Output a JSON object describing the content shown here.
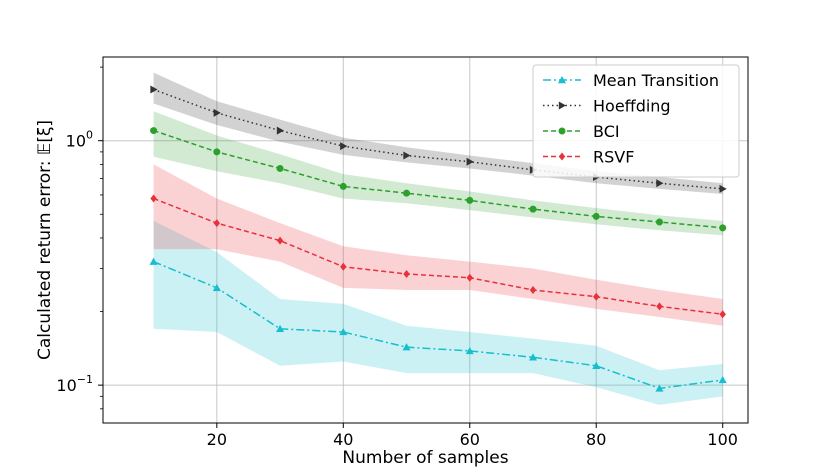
{
  "chart_data": {
    "type": "line",
    "title": "",
    "xlabel": "Number of samples",
    "ylabel": "Calculated return error: 𝔼[ξ]",
    "yscale": "log",
    "xlim": [
      2,
      104
    ],
    "ylim": [
      0.07,
      2.2
    ],
    "xticks": [
      {
        "value": 20,
        "label": "20"
      },
      {
        "value": 40,
        "label": "40"
      },
      {
        "value": 60,
        "label": "60"
      },
      {
        "value": 80,
        "label": "80"
      },
      {
        "value": 100,
        "label": "100"
      }
    ],
    "yticks": [
      {
        "value": 0.1,
        "base": "10",
        "exp": "−1"
      },
      {
        "value": 1.0,
        "base": "10",
        "exp": "0"
      }
    ],
    "grid": true,
    "legend_position": "top-right",
    "x": [
      10,
      20,
      30,
      40,
      50,
      60,
      70,
      80,
      90,
      100
    ],
    "series": [
      {
        "name": "Mean Transition",
        "color": "#17becf",
        "marker": "triangle-up",
        "linestyle": "dashdot",
        "values": [
          0.32,
          0.25,
          0.17,
          0.165,
          0.143,
          0.138,
          0.13,
          0.12,
          0.097,
          0.105
        ],
        "lower": [
          0.17,
          0.165,
          0.12,
          0.125,
          0.112,
          0.112,
          0.112,
          0.098,
          0.083,
          0.09
        ],
        "upper": [
          0.47,
          0.35,
          0.225,
          0.215,
          0.175,
          0.165,
          0.155,
          0.145,
          0.115,
          0.122
        ]
      },
      {
        "name": "Hoeffding",
        "color": "#333333",
        "marker": "triangle-right",
        "linestyle": "dotted",
        "values": [
          1.62,
          1.3,
          1.1,
          0.95,
          0.87,
          0.82,
          0.76,
          0.71,
          0.67,
          0.635
        ],
        "lower": [
          1.42,
          1.16,
          0.99,
          0.875,
          0.815,
          0.77,
          0.72,
          0.67,
          0.635,
          0.605
        ],
        "upper": [
          1.9,
          1.45,
          1.22,
          1.03,
          0.94,
          0.87,
          0.81,
          0.75,
          0.71,
          0.67
        ]
      },
      {
        "name": "BCI",
        "color": "#2ca02c",
        "marker": "circle",
        "linestyle": "dashed",
        "values": [
          1.1,
          0.9,
          0.77,
          0.65,
          0.61,
          0.57,
          0.525,
          0.49,
          0.465,
          0.44
        ],
        "lower": [
          0.86,
          0.75,
          0.67,
          0.58,
          0.555,
          0.52,
          0.485,
          0.455,
          0.43,
          0.41
        ],
        "upper": [
          1.32,
          1.05,
          0.88,
          0.73,
          0.67,
          0.62,
          0.57,
          0.53,
          0.495,
          0.47
        ]
      },
      {
        "name": "RSVF",
        "color": "#e8313a",
        "marker": "diamond",
        "linestyle": "dashed",
        "values": [
          0.58,
          0.46,
          0.39,
          0.305,
          0.285,
          0.275,
          0.245,
          0.23,
          0.21,
          0.195
        ],
        "lower": [
          0.36,
          0.36,
          0.32,
          0.25,
          0.245,
          0.245,
          0.225,
          0.205,
          0.19,
          0.175
        ],
        "upper": [
          0.8,
          0.58,
          0.46,
          0.37,
          0.34,
          0.32,
          0.3,
          0.27,
          0.245,
          0.225
        ]
      }
    ]
  }
}
